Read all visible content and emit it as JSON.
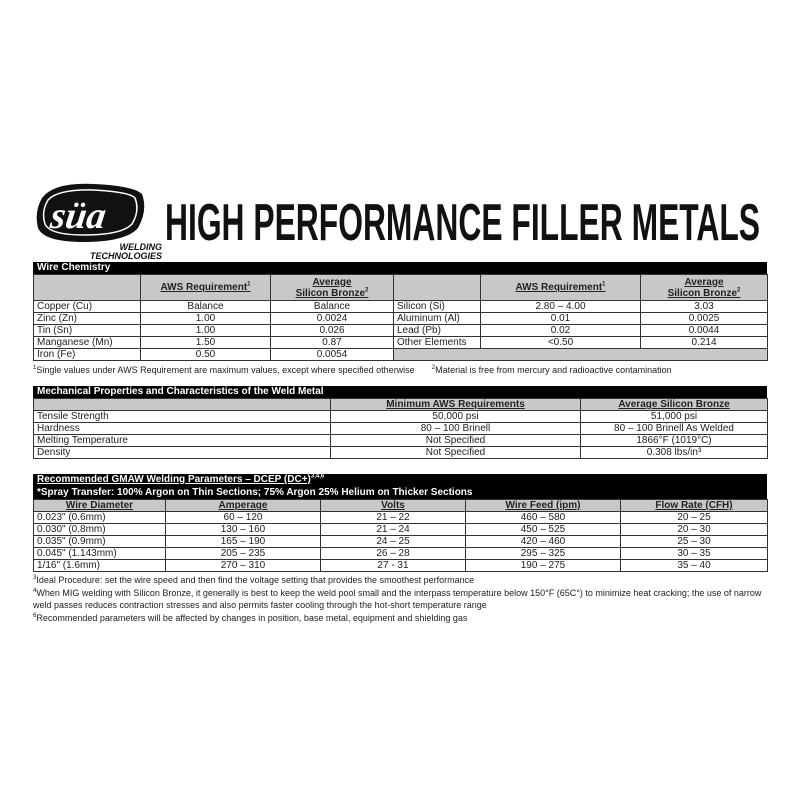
{
  "logo": {
    "mark": "süa",
    "line1": "WELDING",
    "line2": "TECHNOLOGIES"
  },
  "title": "HIGH PERFORMANCE FILLER METALS",
  "wire_chemistry": {
    "header": "Wire Chemistry",
    "col_aws": "AWS Requirement",
    "col_aws_sup": "1",
    "col_avg_1": "Average",
    "col_avg_2": "Silicon Bronze",
    "col_avg_sup": "2",
    "left_rows": [
      {
        "element": "Copper (Cu)",
        "aws": "Balance",
        "avg": "Balance"
      },
      {
        "element": "Zinc (Zn)",
        "aws": "1.00",
        "avg": "0.0024"
      },
      {
        "element": "Tin (Sn)",
        "aws": "1.00",
        "avg": "0.026"
      },
      {
        "element": "Manganese (Mn)",
        "aws": "1.50",
        "avg": "0.87"
      },
      {
        "element": "Iron (Fe)",
        "aws": "0.50",
        "avg": "0.0054"
      }
    ],
    "right_rows": [
      {
        "element": "Silicon (Si)",
        "aws": "2.80 – 4.00",
        "avg": "3.03"
      },
      {
        "element": "Aluminum (Al)",
        "aws": "0.01",
        "avg": "0.0025"
      },
      {
        "element": "Lead (Pb)",
        "aws": "0.02",
        "avg": "0.0044"
      },
      {
        "element": "Other Elements",
        "aws": "<0.50",
        "avg": "0.214"
      }
    ],
    "footnote1_sup": "1",
    "footnote1": "Single values under AWS Requirement are maximum values, except where specified otherwise",
    "footnote2_sup": "2",
    "footnote2": "Material is free from mercury and radioactive contamination"
  },
  "mechanical": {
    "header": "Mechanical Properties and Characteristics of the Weld Metal",
    "col_min": "Minimum AWS Requirements",
    "col_avg": "Average Silicon Bronze",
    "rows": [
      {
        "prop": "Tensile Strength",
        "min": "50,000 psi",
        "avg": "51,000 psi"
      },
      {
        "prop": "Hardness",
        "min": "80 – 100 Brinell",
        "avg": "80 – 100 Brinell As Welded"
      },
      {
        "prop": "Melting Temperature",
        "min": "Not Specified",
        "avg": "1866°F (1019°C)"
      },
      {
        "prop": "Density",
        "min": "Not Specified",
        "avg": "0.308 lbs/in³"
      }
    ]
  },
  "gmaw": {
    "header": "Recommended GMAW Welding Parameters – DCEP (DC+)",
    "header_sup": "3,4,6",
    "subheader": "*Spray Transfer: 100% Argon on Thin Sections; 75% Argon 25% Helium on Thicker Sections",
    "columns": [
      "Wire Diameter",
      "Amperage",
      "Volts",
      "Wire Feed (ipm)",
      "Flow Rate (CFH)"
    ],
    "rows": [
      [
        "0.023\" (0.6mm)",
        "60 – 120",
        "21 – 22",
        "460 – 580",
        "20 – 25"
      ],
      [
        "0.030\" (0.8mm)",
        "130 – 160",
        "21 – 24",
        "450 – 525",
        "20 – 30"
      ],
      [
        "0.035\" (0.9mm)",
        "165 – 190",
        "24 – 25",
        "420 – 460",
        "25 – 30"
      ],
      [
        "0.045\" (1.143mm)",
        "205 – 235",
        "26 – 28",
        "295 – 325",
        "30 – 35"
      ],
      [
        "1/16\" (1.6mm)",
        "270 – 310",
        "27 - 31",
        "190 – 275",
        "35 – 40"
      ]
    ],
    "footnotes": [
      {
        "sup": "3",
        "text": "Ideal Procedure: set the wire speed and then find the voltage setting that provides the smoothest performance"
      },
      {
        "sup": "4",
        "text": "When MIG welding with Silicon Bronze, it generally is best to keep the weld pool small and the interpass temperature below 150°F (65C°) to minimize heat cracking; the use of narrow weld passes reduces contraction stresses and also permits faster cooling through the hot-short temperature range"
      },
      {
        "sup": "6",
        "text": "Recommended parameters will be affected by changes in position, base metal, equipment and shielding gas"
      }
    ]
  }
}
